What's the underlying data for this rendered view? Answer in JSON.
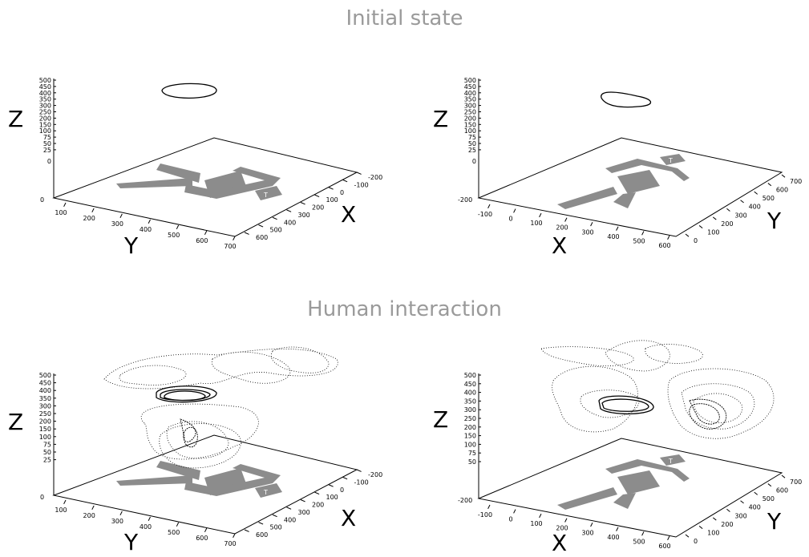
{
  "sections": [
    {
      "title": "Initial state"
    },
    {
      "title": "Human interaction"
    }
  ],
  "colors": {
    "title": "#9a9a9a",
    "axes": "#000000",
    "floor_shapes": "#8c8c8c",
    "trajectory": "#000000"
  },
  "chart_data": [
    {
      "type": "scatter",
      "section": "Initial state",
      "view": "y-front",
      "title": "",
      "zlabel": "Z",
      "xlabel": "X",
      "ylabel": "Y",
      "z_ticks": [
        "500",
        "450",
        "400",
        "350",
        "300",
        "250",
        "200",
        "150",
        "100",
        "75",
        "50",
        "25",
        "0"
      ],
      "y_ticks": [
        "100",
        "200",
        "300",
        "400",
        "500",
        "600",
        "700"
      ],
      "x_ticks": [
        "-200",
        "-100",
        "0",
        "100",
        "200",
        "300",
        "400",
        "500",
        "600"
      ],
      "corner_label": "0",
      "zlim": [
        0,
        500
      ],
      "trajectory": "single loop at z ≈ 450",
      "series": [
        {
          "values": [
            [
              -90,
              250,
              450
            ],
            [
              -60,
              330,
              455
            ],
            [
              0,
              380,
              455
            ],
            [
              60,
              360,
              450
            ],
            [
              80,
              280,
              445
            ],
            [
              40,
              180,
              440
            ],
            [
              -30,
              160,
              442
            ],
            [
              -80,
              200,
              447
            ]
          ]
        }
      ]
    },
    {
      "type": "scatter",
      "section": "Initial state",
      "view": "x-front",
      "title": "",
      "zlabel": "Z",
      "xlabel": "X",
      "ylabel": "Y",
      "z_ticks": [
        "500",
        "450",
        "400",
        "350",
        "300",
        "250",
        "200",
        "150",
        "100",
        "75",
        "50",
        "25",
        "0"
      ],
      "x_ticks": [
        "-100",
        "0",
        "100",
        "200",
        "300",
        "400",
        "500",
        "600"
      ],
      "y_ticks": [
        "0",
        "100",
        "200",
        "300",
        "400",
        "500",
        "600",
        "700"
      ],
      "corner_label": "-200",
      "zlim": [
        0,
        500
      ],
      "trajectory": "single loop at z ≈ 440",
      "series": [
        {
          "values": [
            [
              200,
              340,
              440
            ],
            [
              260,
              420,
              445
            ],
            [
              320,
              440,
              445
            ],
            [
              370,
              400,
              440
            ],
            [
              360,
              320,
              435
            ],
            [
              290,
              300,
              433
            ],
            [
              230,
              310,
              436
            ]
          ]
        }
      ]
    },
    {
      "type": "scatter",
      "section": "Human interaction",
      "view": "y-front",
      "title": "",
      "zlabel": "Z",
      "xlabel": "X",
      "ylabel": "Y",
      "z_ticks": [
        "500",
        "450",
        "400",
        "350",
        "300",
        "250",
        "200",
        "150",
        "100",
        "75",
        "50",
        "25"
      ],
      "y_ticks": [
        "100",
        "200",
        "300",
        "400",
        "500",
        "600",
        "700"
      ],
      "x_ticks": [
        "-200",
        "-100",
        "0",
        "100",
        "200",
        "300",
        "400",
        "500",
        "600"
      ],
      "corner_label": "0",
      "zlim": [
        0,
        500
      ],
      "trajectory": "dense dotted trajectories with tight loops near z ≈ 420"
    },
    {
      "type": "scatter",
      "section": "Human interaction",
      "view": "x-front",
      "title": "",
      "zlabel": "Z",
      "xlabel": "X",
      "ylabel": "Y",
      "z_ticks": [
        "500",
        "450",
        "400",
        "350",
        "300",
        "250",
        "200",
        "150",
        "100",
        "75",
        "50"
      ],
      "x_ticks": [
        "-100",
        "0",
        "100",
        "200",
        "300",
        "400",
        "500",
        "600"
      ],
      "y_ticks": [
        "0",
        "100",
        "200",
        "300",
        "400",
        "500",
        "600",
        "700"
      ],
      "corner_label": "-200",
      "zlim": [
        0,
        500
      ],
      "trajectory": "dense dotted trajectories with two clusters near z ≈ 330"
    }
  ]
}
